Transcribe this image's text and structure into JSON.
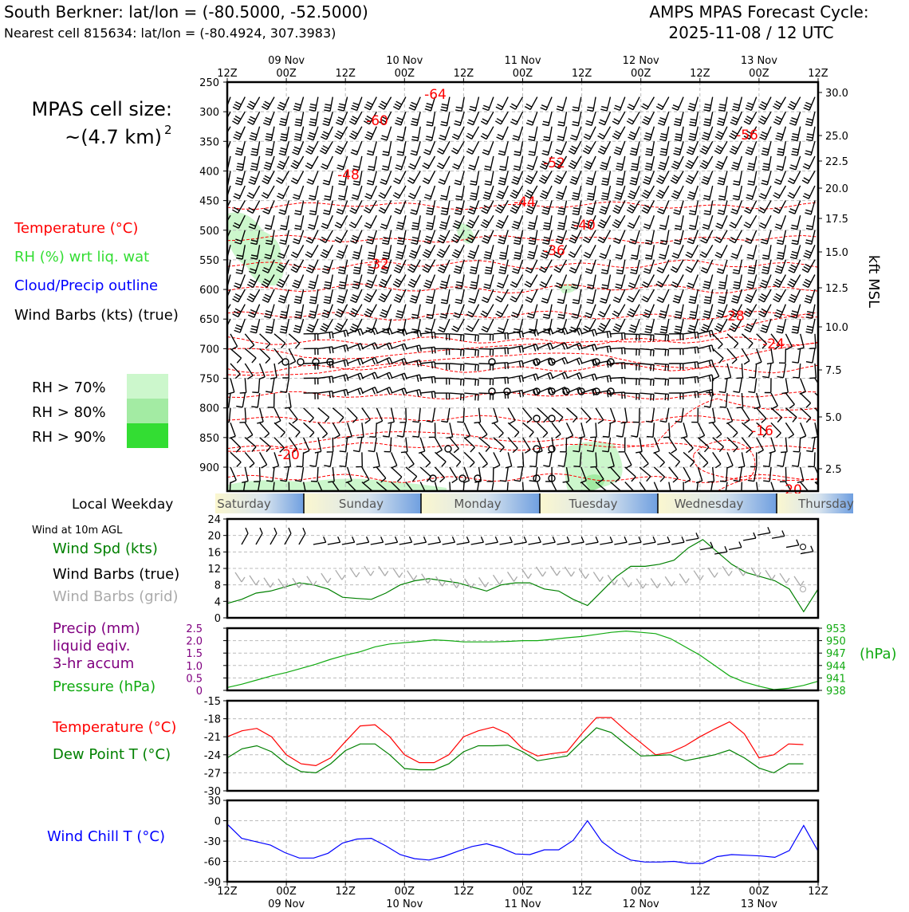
{
  "header": {
    "title_left": "South Berkner: lat/lon = (-80.5000, -52.5000)",
    "subtitle_left": "Nearest cell 815634: lat/lon = (-80.4924, 307.3983)",
    "title_right_1": "AMPS MPAS Forecast Cycle:",
    "title_right_2": "2025-11-08 / 12 UTC"
  },
  "cell_size": {
    "line1": "MPAS cell size:",
    "line2": "~(4.7 km)",
    "exponent": "2"
  },
  "legend_top": {
    "temperature": "Temperature (°C)",
    "rh": "RH (%) wrt liq. wat",
    "cloud": "Cloud/Precip outline",
    "wind": "Wind Barbs (kts) (true)",
    "rh_levels": [
      "RH > 70%",
      "RH > 80%",
      "RH > 90%"
    ]
  },
  "time_axis": {
    "labels": [
      "12Z",
      "00Z",
      "12Z",
      "00Z",
      "12Z",
      "00Z",
      "12Z",
      "00Z",
      "12Z",
      "00Z",
      "12Z"
    ],
    "days": [
      "09 Nov",
      "10 Nov",
      "11 Nov",
      "12 Nov",
      "13 Nov"
    ]
  },
  "colors": {
    "temperature": "#ff0000",
    "dewpoint": "#008000",
    "rh_text": "#33dd33",
    "cloud_text": "#0000ff",
    "precip": "#800080",
    "pressure": "#11aa11",
    "windchill": "#0000ff",
    "rh70": "#ccf7cc",
    "rh80": "#a3eba3",
    "rh90": "#33dd33",
    "grid_barb": "#aaaaaa"
  },
  "weekday": {
    "title": "Local Weekday",
    "days": [
      "Saturday",
      "Sunday",
      "Monday",
      "Tuesday",
      "Wednesday",
      "Thursday"
    ]
  },
  "chart_data": [
    {
      "type": "time-height cross section",
      "y_left_label": "",
      "y_left_ticks": [
        250,
        300,
        350,
        400,
        450,
        500,
        550,
        600,
        650,
        700,
        750,
        800,
        850,
        900
      ],
      "y_right_ticks": [
        "30.0",
        "25.0",
        "22.5",
        "20.0",
        "17.5",
        "15.0",
        "12.5",
        "10.0",
        "7.5",
        "5.0",
        "2.5"
      ],
      "y_right_label": "kft MSL",
      "temperature_contour_labels": [
        "-64",
        "-60",
        "-56",
        "-52",
        "-48",
        "-44",
        "-40",
        "-36",
        "-32",
        "-28",
        "-24",
        "-20",
        "-16",
        "-20"
      ]
    },
    {
      "type": "line",
      "title": "Wind at 10m AGL",
      "legend": [
        "Wind Spd (kts)",
        "Wind Barbs (true)",
        "Wind Barbs (grid)"
      ],
      "ylim": [
        0,
        24
      ],
      "yticks": [
        "0",
        "4",
        "8",
        "12",
        "16",
        "20",
        "24"
      ],
      "series": [
        {
          "name": "Wind Spd (kts)",
          "values": [
            3.5,
            4.5,
            6,
            6.5,
            7.5,
            8.5,
            8,
            7,
            5,
            4.7,
            4.5,
            6,
            8,
            9,
            9.5,
            9,
            8.5,
            7.5,
            6.5,
            8,
            8.5,
            8.5,
            7,
            6.5,
            4.5,
            3,
            6.5,
            10,
            12.5,
            12.5,
            13,
            14,
            17,
            19,
            16,
            13,
            11,
            10,
            9,
            7,
            1.5,
            7
          ]
        }
      ]
    },
    {
      "type": "line",
      "legend": [
        "Precip (mm)",
        "liquid eqiv.",
        "3-hr accum",
        "Pressure (hPa)"
      ],
      "precip_yticks": [
        "0",
        "0.5",
        "1.0",
        "1.5",
        "2.0",
        "2.5"
      ],
      "pressure_ylim": [
        938,
        953
      ],
      "pressure_yticks": [
        "953",
        "950",
        "947",
        "944",
        "941",
        "938"
      ],
      "pressure_unit": "(hPa)",
      "series": [
        {
          "name": "Pressure (hPa)",
          "values": [
            938.7,
            939.5,
            940.5,
            941.5,
            942.3,
            943.3,
            944.3,
            945.5,
            946.5,
            947.3,
            948.5,
            949.2,
            949.5,
            949.8,
            950.2,
            950,
            949.7,
            949.7,
            949.7,
            949.8,
            950,
            950,
            950.3,
            950.7,
            951,
            951.5,
            952,
            952.3,
            952,
            951.7,
            950.5,
            948.5,
            946.5,
            944,
            941.5,
            940,
            939,
            938.2,
            938.5,
            939.2,
            940.2
          ]
        }
      ]
    },
    {
      "type": "line",
      "legend": [
        "Temperature (°C)",
        "Dew Point T (°C)"
      ],
      "ylim": [
        -30,
        -15
      ],
      "yticks": [
        "-15",
        "-18",
        "-21",
        "-24",
        "-27",
        "-30"
      ],
      "series": [
        {
          "name": "Temperature (°C)",
          "values": [
            -21,
            -20,
            -19.6,
            -21,
            -24,
            -25.5,
            -25.8,
            -24.5,
            -21.8,
            -19.2,
            -19,
            -21,
            -24,
            -25.3,
            -25.3,
            -24,
            -21,
            -20,
            -19.4,
            -20.5,
            -23,
            -24.2,
            -23.8,
            -23.5,
            -20.5,
            -17.8,
            -17.8,
            -20,
            -22,
            -24,
            -23.6,
            -22.5,
            -21,
            -19.7,
            -18.5,
            -20.5,
            -24.5,
            -24,
            -22.2,
            -22.3
          ],
          "x_steps": [
            0,
            2,
            4,
            6,
            8,
            10,
            12,
            14,
            16,
            18,
            20,
            22,
            24,
            26,
            28,
            30,
            32,
            34,
            36,
            38,
            40,
            42,
            44,
            46,
            48,
            50,
            52,
            54,
            56,
            58,
            60,
            62,
            64,
            66,
            68,
            70,
            72,
            74,
            76,
            78
          ]
        },
        {
          "name": "Dew Point T (°C)",
          "values": [
            -24.5,
            -23,
            -22.5,
            -23.5,
            -25.5,
            -26.8,
            -27,
            -25.5,
            -23.3,
            -22.2,
            -22.2,
            -24,
            -26.3,
            -26.5,
            -26.5,
            -25.5,
            -23.5,
            -22.5,
            -22.5,
            -22.4,
            -23.5,
            -25,
            -24.6,
            -24.2,
            -21.8,
            -19.5,
            -20.3,
            -22.3,
            -24.2,
            -24.1,
            -24,
            -25,
            -24.5,
            -24,
            -23.2,
            -24.5,
            -26.2,
            -27,
            -25.5,
            -25.5
          ],
          "x_steps": [
            0,
            2,
            4,
            6,
            8,
            10,
            12,
            14,
            16,
            18,
            20,
            22,
            24,
            26,
            28,
            30,
            32,
            34,
            36,
            38,
            40,
            42,
            44,
            46,
            48,
            50,
            52,
            54,
            56,
            58,
            60,
            62,
            64,
            66,
            68,
            70,
            72,
            74,
            76,
            78
          ]
        }
      ]
    },
    {
      "type": "line",
      "legend": [
        "Wind Chill T (°C)"
      ],
      "ylim": [
        -90,
        30
      ],
      "yticks": [
        "30",
        "0",
        "-30",
        "-60",
        "-90"
      ],
      "series": [
        {
          "name": "Wind Chill T (°C)",
          "values": [
            -5,
            -26,
            -31,
            -36,
            -47,
            -55,
            -55,
            -48,
            -33,
            -27,
            -26,
            -37,
            -50,
            -56,
            -58,
            -53,
            -45,
            -38,
            -34,
            -40,
            -49,
            -50,
            -43,
            -43,
            -29,
            0,
            -31,
            -47,
            -58,
            -61,
            -61,
            -60,
            -63,
            -63,
            -53,
            -50,
            -51,
            -52,
            -54,
            -44,
            -7,
            -45
          ]
        }
      ]
    }
  ]
}
